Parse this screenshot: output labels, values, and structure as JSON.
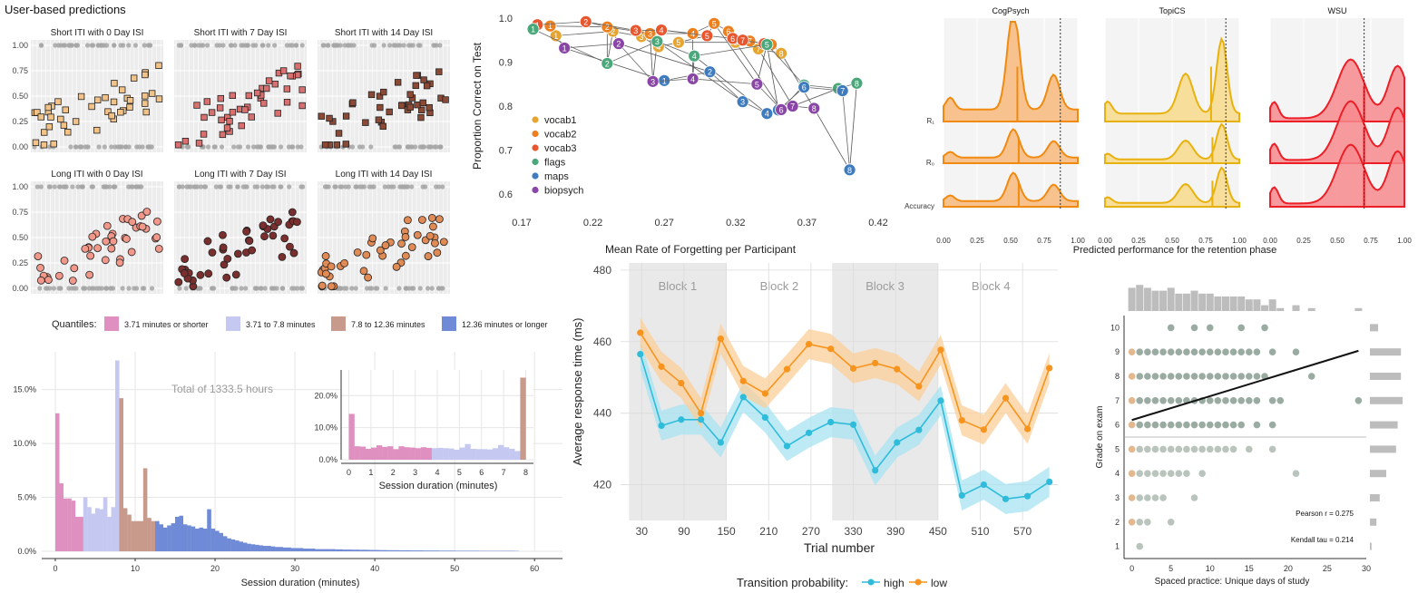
{
  "chart_data": [
    {
      "id": "panelA",
      "type": "scatter",
      "title": "User-based predictions",
      "ylim": [
        0,
        1
      ],
      "ytick_labels": [
        "0.00",
        "0.25",
        "0.50",
        "0.75",
        "1.00"
      ],
      "facets": [
        {
          "title": "Short ITI with 0 Day ISI",
          "marker": "square",
          "color": "#f3c287"
        },
        {
          "title": "Short ITI with 7 Day ISI",
          "marker": "square",
          "color": "#d8706f"
        },
        {
          "title": "Short ITI with 14 Day ISI",
          "marker": "square",
          "color": "#8a4a36"
        },
        {
          "title": "Long ITI with 0 Day ISI",
          "marker": "circle",
          "color": "#f1988a"
        },
        {
          "title": "Long ITI with 7 Day ISI",
          "marker": "circle",
          "color": "#7a2f2f"
        },
        {
          "title": "Long ITI with 14 Day ISI",
          "marker": "circle",
          "color": "#e08a55"
        }
      ]
    },
    {
      "id": "panelB",
      "type": "line",
      "xlabel": "Mean Rate of Forgetting per Participant",
      "ylabel": "Proportion Correct on Test",
      "xlim": [
        0.17,
        0.42
      ],
      "ylim": [
        0.6,
        1.0
      ],
      "xticks": [
        0.17,
        0.22,
        0.27,
        0.32,
        0.37,
        0.42
      ],
      "xtick_labels": [
        "0.17",
        "0.22",
        "0.27",
        "0.32",
        "0.37",
        "0.42"
      ],
      "yticks": [
        0.6,
        0.7,
        0.8,
        0.9,
        1.0
      ],
      "ytick_labels": [
        "0.6",
        "0.7",
        "0.8",
        "0.9",
        "1.0"
      ],
      "series": [
        {
          "name": "vocab1",
          "color": "#e6a532",
          "points": [
            [
              0.194,
              0.96
            ],
            [
              0.234,
              0.97
            ],
            [
              0.254,
              0.958
            ],
            [
              0.266,
              0.935
            ],
            [
              0.28,
              0.945
            ],
            [
              0.32,
              0.945
            ],
            [
              0.336,
              0.93
            ],
            [
              0.352,
              0.92
            ]
          ]
        },
        {
          "name": "vocab2",
          "color": "#ee7f1f",
          "points": [
            [
              0.19,
              0.982
            ],
            [
              0.23,
              0.98
            ],
            [
              0.26,
              0.965
            ],
            [
              0.29,
              0.965
            ],
            [
              0.305,
              0.988
            ],
            [
              0.315,
              0.97
            ],
            [
              0.33,
              0.948
            ],
            [
              0.345,
              0.94
            ]
          ]
        },
        {
          "name": "vocab3",
          "color": "#e8562e",
          "points": [
            [
              0.181,
              0.985
            ],
            [
              0.215,
              0.992
            ],
            [
              0.25,
              0.972
            ],
            [
              0.268,
              0.973
            ],
            [
              0.3,
              0.96
            ],
            [
              0.318,
              0.954
            ],
            [
              0.325,
              0.95
            ],
            [
              0.34,
              0.942
            ]
          ]
        },
        {
          "name": "flags",
          "color": "#4aa77a",
          "points": [
            [
              0.178,
              0.975
            ],
            [
              0.23,
              0.897
            ],
            [
              0.265,
              0.947
            ],
            [
              0.291,
              0.914
            ],
            [
              0.342,
              0.94
            ],
            [
              0.368,
              0.848
            ],
            [
              0.392,
              0.84
            ],
            [
              0.405,
              0.852
            ]
          ]
        },
        {
          "name": "maps",
          "color": "#3f7cbf",
          "points": [
            [
              0.27,
              0.858
            ],
            [
              0.302,
              0.878
            ],
            [
              0.325,
              0.81
            ],
            [
              0.342,
              0.783
            ],
            [
              0.35,
              0.791
            ],
            [
              0.368,
              0.843
            ],
            [
              0.395,
              0.835
            ],
            [
              0.4,
              0.655
            ]
          ]
        },
        {
          "name": "biopsych",
          "color": "#8a46a6",
          "points": [
            [
              0.2,
              0.932
            ],
            [
              0.238,
              0.942
            ],
            [
              0.262,
              0.856
            ],
            [
              0.29,
              0.862
            ],
            [
              0.335,
              0.85
            ],
            [
              0.352,
              0.792
            ],
            [
              0.36,
              0.8
            ],
            [
              0.375,
              0.795
            ]
          ]
        }
      ]
    },
    {
      "id": "panelC",
      "type": "area",
      "xlabel": "Predicted performance for the retention phase",
      "xlim": [
        0,
        1
      ],
      "xtick_labels": [
        "0.00",
        "0.25",
        "0.50",
        "0.75",
        "1.00"
      ],
      "row_labels": [
        "R₁",
        "R₀",
        "Accuracy"
      ],
      "groups": [
        {
          "name": "CogPsych",
          "color": "#f08a10",
          "fill": "#f7b87a",
          "vline": 0.87,
          "medians": [
            0.55,
            0.56,
            0.56
          ]
        },
        {
          "name": "TopiCS",
          "color": "#e8b20e",
          "fill": "#f7d98a",
          "vline": 0.9,
          "medians": [
            0.79,
            0.8,
            0.8
          ]
        },
        {
          "name": "WSU",
          "color": "#ec1f27",
          "fill": "#f78a8e",
          "vline": 0.7,
          "medians": [
            0.7,
            0.7,
            0.7
          ]
        }
      ]
    },
    {
      "id": "panelD",
      "type": "bar",
      "xlabel": "Session duration (minutes)",
      "xlim": [
        0,
        60
      ],
      "xticks": [
        0,
        10,
        20,
        30,
        40,
        50,
        60
      ],
      "xtick_labels": [
        "0",
        "10",
        "20",
        "30",
        "40",
        "50",
        "60"
      ],
      "yticks": [
        0,
        5,
        10,
        15
      ],
      "ytick_labels": [
        "0.0%",
        "5.0%",
        "10.0%",
        "15.0%"
      ],
      "ylim": [
        0,
        18.5
      ],
      "annotation": "Total of 1333.5 hours",
      "legend_title": "Quantiles:",
      "legend": [
        {
          "label": "3.71 minutes or shorter",
          "color": "#e090c0"
        },
        {
          "label": "3.71 to 7.8 minutes",
          "color": "#c5c9f1"
        },
        {
          "label": "7.8 to 12.36 minutes",
          "color": "#c89a8c"
        },
        {
          "label": "12.36 minutes or longer",
          "color": "#6f8ad6"
        }
      ],
      "bin_width": 0.5,
      "values": [
        12.8,
        6.3,
        4.9,
        4.9,
        4.7,
        3.2,
        3.2,
        5.0,
        4.1,
        3.5,
        4.0,
        3.9,
        5.0,
        3.2,
        4.1,
        17.7,
        14.2,
        4.0,
        3.4,
        2.8,
        2.8,
        2.8,
        7.7,
        3.1,
        2.8,
        2.8,
        2.5,
        2.2,
        2.4,
        2.6,
        3.2,
        3.3,
        2.5,
        2.4,
        2.3,
        2.1,
        2.2,
        2.1,
        3.9,
        2.1,
        1.9,
        1.7,
        1.4,
        1.2,
        1.1,
        1.0,
        0.9,
        0.8,
        0.7,
        0.65,
        0.6,
        0.55,
        0.5,
        0.5,
        0.45,
        0.4,
        0.4,
        0.35,
        0.35,
        0.3,
        0.3,
        0.3,
        0.25,
        0.25,
        0.25,
        0.2,
        0.2,
        0.2,
        0.2,
        0.2,
        0.18,
        0.18,
        0.16,
        0.16,
        0.15,
        0.15,
        0.14,
        0.14,
        0.13,
        0.12,
        0.12,
        0.11,
        0.11,
        0.1,
        0.1,
        0.1,
        0.09,
        0.09,
        0.09,
        0.08,
        0.08,
        0.08,
        0.07,
        0.07,
        0.07,
        0.07,
        0.06,
        0.06,
        0.06,
        0.06,
        0.05,
        0.05,
        0.05,
        0.05,
        0.05,
        0.05,
        0.04,
        0.04,
        0.04,
        0.04,
        0.04,
        0.04,
        0.04,
        0.04,
        0.04,
        0.03
      ],
      "inset": {
        "xlabel": "Session duration (minutes)",
        "xlim": [
          0,
          8
        ],
        "xtick_labels": [
          "0",
          "1",
          "2",
          "3",
          "4",
          "5",
          "6",
          "7",
          "8"
        ],
        "ytick_labels": [
          "0.0%",
          "10.0%",
          "20.0%"
        ],
        "ylim": [
          0,
          28
        ],
        "bin_width": 0.5,
        "values": [
          14.3,
          4.2,
          4.1,
          3.4,
          3.8,
          4.5,
          4.0,
          4.2,
          3.3,
          4.2,
          3.9,
          3.8,
          3.6,
          3.9,
          3.7,
          3.6,
          3.7,
          3.6,
          3.5,
          3.1,
          3.8,
          4.9,
          3.4,
          3.3,
          3.3,
          3.2,
          3.6,
          4.6,
          3.9,
          3.4,
          2.7,
          25.6
        ]
      }
    },
    {
      "id": "panelE",
      "type": "line",
      "xlabel": "Trial number",
      "ylabel": "Average response time (ms)",
      "xlim": [
        0,
        620
      ],
      "ylim": [
        410,
        482
      ],
      "xticks": [
        30,
        90,
        150,
        210,
        270,
        330,
        390,
        450,
        510,
        570
      ],
      "xtick_labels": [
        "30",
        "90",
        "150",
        "210",
        "270",
        "330",
        "390",
        "450",
        "510",
        "570"
      ],
      "yticks": [
        420,
        440,
        460,
        480
      ],
      "ytick_labels": [
        "420",
        "440",
        "460",
        "480"
      ],
      "blocks": [
        {
          "label": "Block 1",
          "x0": 12,
          "x1": 150,
          "shaded": true
        },
        {
          "label": "Block 2",
          "x0": 150,
          "x1": 300,
          "shaded": false
        },
        {
          "label": "Block 3",
          "x0": 300,
          "x1": 450,
          "shaded": true
        },
        {
          "label": "Block 4",
          "x0": 450,
          "x1": 600,
          "shaded": false
        }
      ],
      "legend_title": "Transition probability:",
      "x": [
        28,
        58,
        86,
        114,
        142,
        174,
        205,
        236,
        267,
        298,
        330,
        361,
        392,
        423,
        454,
        484,
        515,
        546,
        577,
        608
      ],
      "series": [
        {
          "name": "high",
          "color": "#2fbcdb",
          "fill": "#a8e3f1",
          "values": [
            456.5,
            436.5,
            438.2,
            438.2,
            431.8,
            444.5,
            438.8,
            430.8,
            434.5,
            437.5,
            436.8,
            424.0,
            431.8,
            435.3,
            443.5,
            417.0,
            420.0,
            416.0,
            416.8,
            420.8
          ]
        },
        {
          "name": "low",
          "color": "#f7941d",
          "fill": "#fbcf9a",
          "values": [
            462.5,
            453.0,
            448.4,
            440.0,
            460.8,
            449.0,
            445.5,
            452.3,
            459.3,
            458.0,
            452.5,
            454.0,
            452.3,
            447.5,
            457.7,
            438.0,
            435.4,
            444.2,
            435.6,
            452.6
          ]
        }
      ]
    },
    {
      "id": "panelF",
      "type": "scatter",
      "xlabel": "Spaced practice: Unique days of study",
      "ylabel": "Grade on exam",
      "xlim": [
        -1,
        30
      ],
      "ylim": [
        0.5,
        10.5
      ],
      "xticks": [
        0,
        5,
        10,
        15,
        20,
        25,
        30
      ],
      "xtick_labels": [
        "0",
        "5",
        "10",
        "15",
        "20",
        "25",
        "30"
      ],
      "yticks": [
        1,
        2,
        3,
        4,
        5,
        6,
        7,
        8,
        9,
        10
      ],
      "ytick_labels": [
        "1",
        "2",
        "3",
        "4",
        "5",
        "6",
        "7",
        "8",
        "9",
        "10"
      ],
      "threshold_y": 5.5,
      "fit_line": [
        [
          0,
          6.2
        ],
        [
          29,
          9.05
        ]
      ],
      "stats": [
        "Pearson r = 0.275",
        "Kendall tau = 0.214"
      ],
      "point_color_high": "#6f877b",
      "point_color_low": "#9aab9f",
      "zero_day_color": "#d59a62",
      "points": [
        [
          0,
          9
        ],
        [
          0,
          8
        ],
        [
          0,
          7
        ],
        [
          0,
          6
        ],
        [
          0,
          5
        ],
        [
          0,
          4
        ],
        [
          0,
          3
        ],
        [
          0,
          2
        ],
        [
          1,
          9
        ],
        [
          1,
          8
        ],
        [
          1,
          7
        ],
        [
          1,
          6
        ],
        [
          1,
          5
        ],
        [
          1,
          4
        ],
        [
          1,
          3
        ],
        [
          1,
          2
        ],
        [
          1,
          1
        ],
        [
          2,
          9
        ],
        [
          2,
          8
        ],
        [
          2,
          7
        ],
        [
          2,
          6
        ],
        [
          2,
          5
        ],
        [
          2,
          4
        ],
        [
          2,
          3
        ],
        [
          2,
          2
        ],
        [
          3,
          9
        ],
        [
          3,
          8
        ],
        [
          3,
          7
        ],
        [
          3,
          6
        ],
        [
          3,
          5
        ],
        [
          3,
          4
        ],
        [
          3,
          3
        ],
        [
          4,
          9
        ],
        [
          4,
          8
        ],
        [
          4,
          7
        ],
        [
          4,
          6
        ],
        [
          4,
          5
        ],
        [
          4,
          4
        ],
        [
          4,
          3
        ],
        [
          5,
          10
        ],
        [
          5,
          9
        ],
        [
          5,
          8
        ],
        [
          5,
          7
        ],
        [
          5,
          6
        ],
        [
          5,
          5
        ],
        [
          5,
          4
        ],
        [
          5,
          2
        ],
        [
          6,
          9
        ],
        [
          6,
          8
        ],
        [
          6,
          7
        ],
        [
          6,
          6
        ],
        [
          6,
          5
        ],
        [
          6,
          4
        ],
        [
          7,
          9
        ],
        [
          7,
          8
        ],
        [
          7,
          7
        ],
        [
          7,
          6
        ],
        [
          7,
          5
        ],
        [
          7,
          4
        ],
        [
          8,
          10
        ],
        [
          8,
          9
        ],
        [
          8,
          8
        ],
        [
          8,
          7
        ],
        [
          8,
          6
        ],
        [
          8,
          5
        ],
        [
          8,
          3
        ],
        [
          9,
          9
        ],
        [
          9,
          8
        ],
        [
          9,
          7
        ],
        [
          9,
          6
        ],
        [
          9,
          5
        ],
        [
          9,
          4
        ],
        [
          10,
          10
        ],
        [
          10,
          9
        ],
        [
          10,
          8
        ],
        [
          10,
          7
        ],
        [
          10,
          6
        ],
        [
          10,
          5
        ],
        [
          11,
          9
        ],
        [
          11,
          8
        ],
        [
          11,
          7
        ],
        [
          11,
          6
        ],
        [
          11,
          5
        ],
        [
          12,
          9
        ],
        [
          12,
          8
        ],
        [
          12,
          7
        ],
        [
          12,
          6
        ],
        [
          12,
          5
        ],
        [
          13,
          9
        ],
        [
          13,
          8
        ],
        [
          13,
          7
        ],
        [
          13,
          6
        ],
        [
          13,
          5
        ],
        [
          14,
          10
        ],
        [
          14,
          9
        ],
        [
          14,
          8
        ],
        [
          14,
          7
        ],
        [
          14,
          6
        ],
        [
          15,
          9
        ],
        [
          15,
          8
        ],
        [
          15,
          7
        ],
        [
          15,
          5
        ],
        [
          16,
          9
        ],
        [
          16,
          8
        ],
        [
          16,
          7
        ],
        [
          16,
          6
        ],
        [
          17,
          10
        ],
        [
          17,
          8
        ],
        [
          18,
          9
        ],
        [
          18,
          7
        ],
        [
          18,
          6
        ],
        [
          18,
          5
        ],
        [
          19,
          7
        ],
        [
          21,
          9
        ],
        [
          21,
          4
        ],
        [
          23,
          8
        ],
        [
          29,
          7
        ]
      ]
    }
  ]
}
